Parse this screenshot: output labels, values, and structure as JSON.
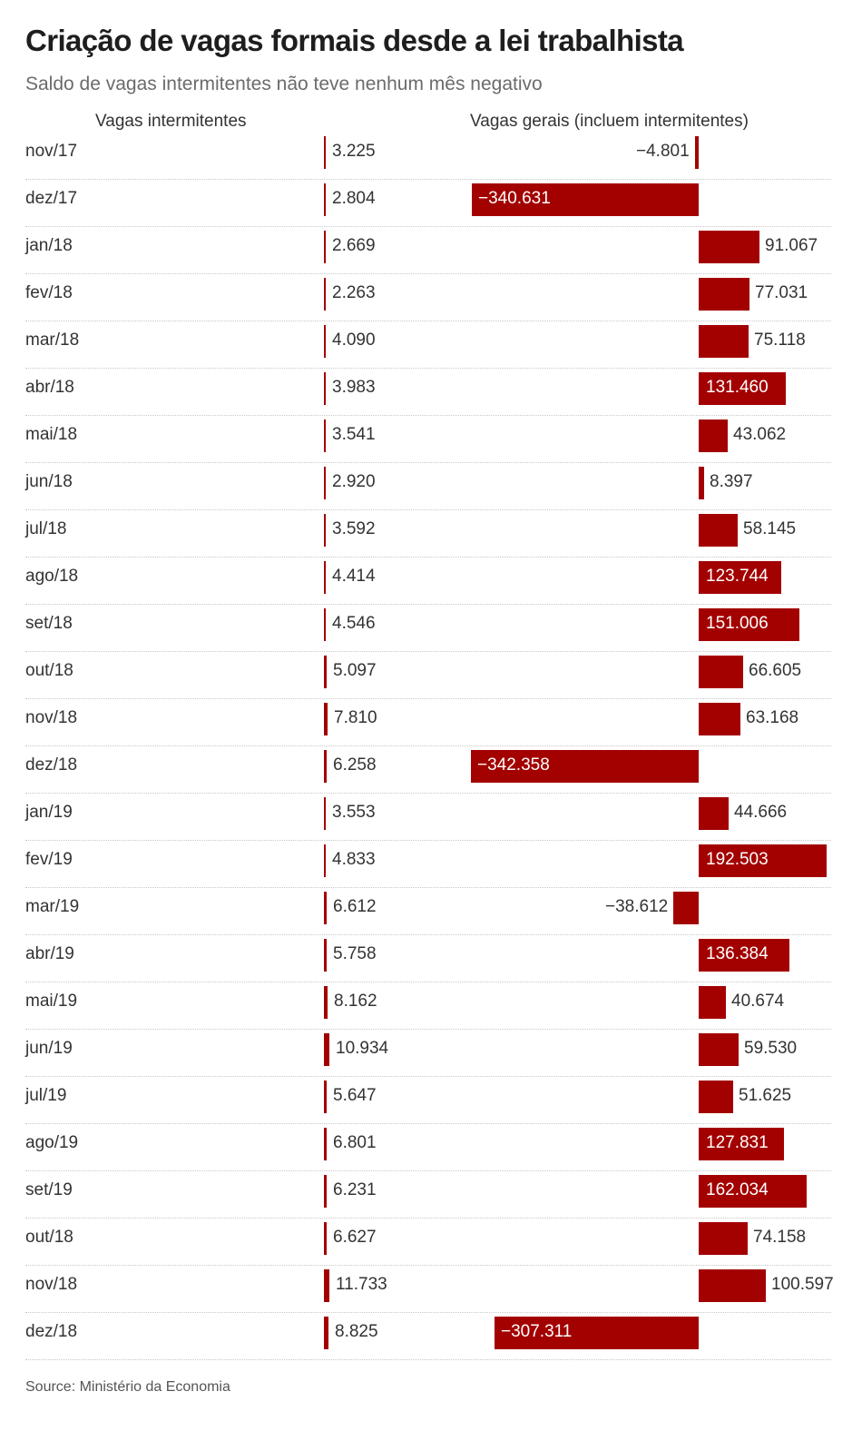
{
  "header": {
    "title": "Criação de vagas formais desde a lei trabalhista",
    "subtitle": "Saldo de vagas intermitentes não teve nenhum mês negativo",
    "col_intermitentes": "Vagas intermitentes",
    "col_gerais": "Vagas gerais (incluem intermitentes)"
  },
  "source": "Source: Ministério da Economia",
  "colors": {
    "bar": "#a30000",
    "text": "#333333",
    "separator": "#c8c8c8"
  },
  "chart_data": {
    "type": "bar",
    "title": "Criação de vagas formais desde a lei trabalhista",
    "subtitle": "Saldo de vagas intermitentes não teve nenhum mês negativo",
    "categories": [
      "nov/17",
      "dez/17",
      "jan/18",
      "fev/18",
      "mar/18",
      "abr/18",
      "mai/18",
      "jun/18",
      "jul/18",
      "ago/18",
      "set/18",
      "out/18",
      "nov/18",
      "dez/18",
      "jan/19",
      "fev/19",
      "mar/19",
      "abr/19",
      "mai/19",
      "jun/19",
      "jul/19",
      "ago/19",
      "set/19",
      "out/18",
      "nov/18",
      "dez/18"
    ],
    "series": [
      {
        "name": "Vagas intermitentes",
        "values": [
          3225,
          2804,
          2669,
          2263,
          4090,
          3983,
          3541,
          2920,
          3592,
          4414,
          4546,
          5097,
          7810,
          6258,
          3553,
          4833,
          6612,
          5758,
          8162,
          10934,
          5647,
          6801,
          6231,
          6627,
          11733,
          8825
        ],
        "labels": [
          "3.225",
          "2.804",
          "2.669",
          "2.263",
          "4.090",
          "3.983",
          "3.541",
          "2.920",
          "3.592",
          "4.414",
          "4.546",
          "5.097",
          "7.810",
          "6.258",
          "3.553",
          "4.833",
          "6.612",
          "5.758",
          "8.162",
          "10.934",
          "5.647",
          "6.801",
          "6.231",
          "6.627",
          "11.733",
          "8.825"
        ]
      },
      {
        "name": "Vagas gerais (incluem intermitentes)",
        "values": [
          -4801,
          -340631,
          91067,
          77031,
          75118,
          131460,
          43062,
          8397,
          58145,
          123744,
          151006,
          66605,
          63168,
          -342358,
          44666,
          192503,
          -38612,
          136384,
          40674,
          59530,
          51625,
          127831,
          162034,
          74158,
          100597,
          -307311
        ],
        "labels": [
          "−4.801",
          "−340.631",
          "91.067",
          "77.031",
          "75.118",
          "131.460",
          "43.062",
          "8.397",
          "58.145",
          "123.744",
          "151.006",
          "66.605",
          "63.168",
          "−342.358",
          "44.666",
          "192.503",
          "−38.612",
          "136.384",
          "40.674",
          "59.530",
          "51.625",
          "127.831",
          "162.034",
          "74.158",
          "100.597",
          "−307.311"
        ]
      }
    ],
    "grid": false,
    "legend": "none"
  }
}
